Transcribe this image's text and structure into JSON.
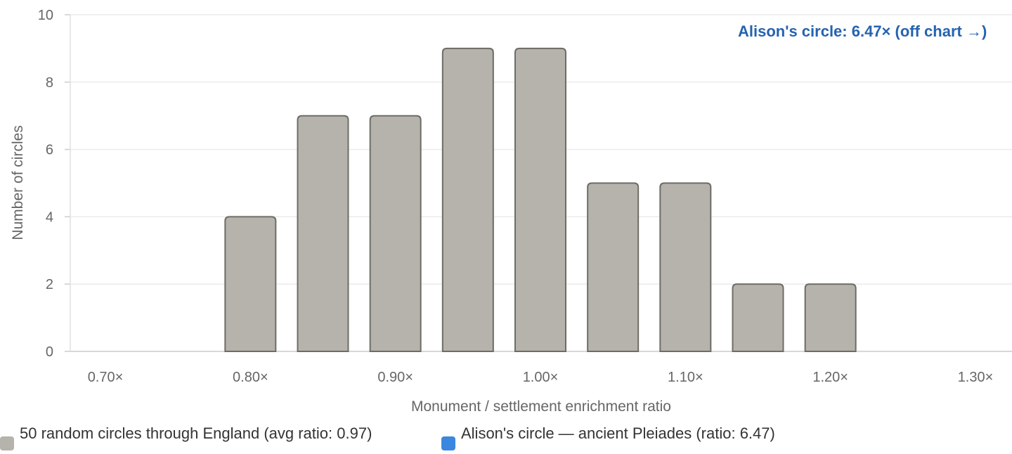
{
  "chart_data": {
    "type": "bar",
    "title": "",
    "xlabel": "Monument / settlement enrichment ratio",
    "ylabel": "Number of circles",
    "ylim": [
      0,
      10
    ],
    "yticks": [
      "0",
      "2",
      "4",
      "6",
      "8",
      "10"
    ],
    "xticks": [
      "0.70×",
      "0.80×",
      "0.90×",
      "1.00×",
      "1.10×",
      "1.20×",
      "1.30×"
    ],
    "xrange": [
      0.7,
      1.3
    ],
    "bin_width": 0.05,
    "bins": [
      {
        "x": 0.8,
        "count": 4
      },
      {
        "x": 0.85,
        "count": 7
      },
      {
        "x": 0.9,
        "count": 7
      },
      {
        "x": 0.95,
        "count": 9
      },
      {
        "x": 1.0,
        "count": 9
      },
      {
        "x": 1.05,
        "count": 5
      },
      {
        "x": 1.1,
        "count": 5
      },
      {
        "x": 1.15,
        "count": 2
      },
      {
        "x": 1.2,
        "count": 2
      }
    ],
    "annotation": "Alison's circle: 6.47× (off chart →)",
    "grid": true,
    "legend": [
      {
        "label": "50 random circles through England (avg ratio: 0.97)",
        "color": "#b5b3ab"
      },
      {
        "label": "Alison's circle — ancient Pleiades (ratio: 6.47)",
        "color": "#3b87e0"
      }
    ]
  },
  "colors": {
    "bar_fill": "#b5b3ab",
    "bar_stroke": "#6e6c66",
    "highlight": "#3b87e0",
    "annotation": "#2563b0",
    "grid": "#ebebeb"
  }
}
